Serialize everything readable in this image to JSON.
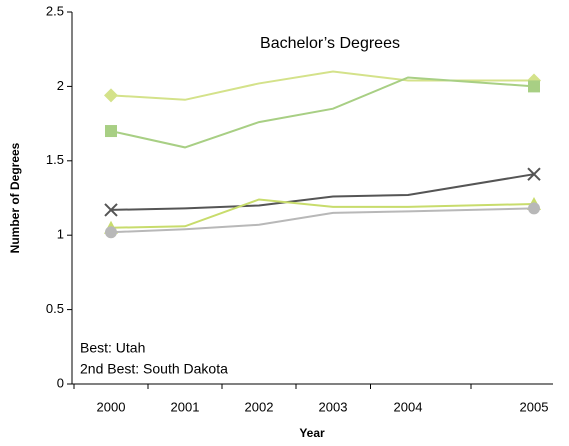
{
  "chart_data": {
    "type": "line",
    "title": "Bachelor’s Degrees",
    "x_label": "Year",
    "y_label": "Number of Degrees",
    "annotations": [
      "Best: Utah",
      "2nd Best: South Dakota"
    ],
    "categories": [
      "2000",
      "2001",
      "2002",
      "2003",
      "2004",
      "2005"
    ],
    "series": [
      {
        "color": "#d4e28a",
        "marker": "diamond",
        "values": [
          1.94,
          1.91,
          2.02,
          2.1,
          2.04,
          2.04
        ]
      },
      {
        "color": "#a8cf84",
        "marker": "square",
        "values": [
          1.7,
          1.59,
          1.76,
          1.85,
          2.06,
          2.0
        ]
      },
      {
        "color": "#555555",
        "marker": "x",
        "values": [
          1.17,
          1.18,
          1.2,
          1.26,
          1.27,
          1.41
        ]
      },
      {
        "color": "#c8dc6c",
        "marker": "triangle",
        "values": [
          1.05,
          1.06,
          1.24,
          1.19,
          1.19,
          1.21
        ]
      },
      {
        "color": "#b8b8b8",
        "marker": "circle",
        "values": [
          1.02,
          1.04,
          1.07,
          1.15,
          1.16,
          1.18
        ]
      }
    ],
    "ylim": [
      0,
      2.5
    ],
    "yticks": [
      0,
      0.5,
      1,
      1.5,
      2,
      2.5
    ],
    "grid": false
  }
}
